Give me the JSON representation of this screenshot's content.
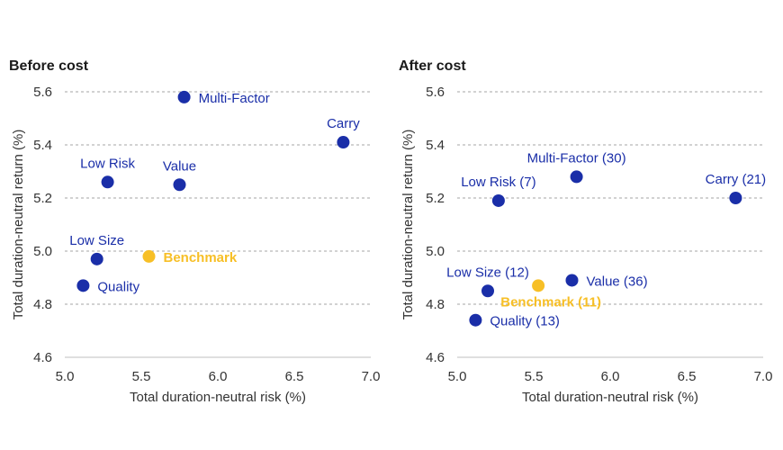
{
  "colors": {
    "series": "#1a2ea8",
    "benchmark": "#f7bf26",
    "text": "#333333"
  },
  "chart_data": [
    {
      "type": "scatter",
      "title": "Before cost",
      "xlabel": "Total duration-neutral risk (%)",
      "ylabel": "Total duration-neutral return (%)",
      "xlim": [
        5.0,
        7.0
      ],
      "ylim": [
        4.6,
        5.6
      ],
      "xticks": [
        "5.0",
        "5.5",
        "6.0",
        "6.5",
        "7.0"
      ],
      "yticks": [
        "4.6",
        "4.8",
        "5.0",
        "5.2",
        "5.4",
        "5.6"
      ],
      "grid": "horizontal dashed",
      "points": [
        {
          "label": "Multi-Factor",
          "x": 5.78,
          "y": 5.58,
          "benchmark": false,
          "anchor": "right"
        },
        {
          "label": "Carry",
          "x": 6.82,
          "y": 5.41,
          "benchmark": false,
          "anchor": "above"
        },
        {
          "label": "Low Risk",
          "x": 5.28,
          "y": 5.26,
          "benchmark": false,
          "anchor": "above"
        },
        {
          "label": "Value",
          "x": 5.75,
          "y": 5.25,
          "benchmark": false,
          "anchor": "above"
        },
        {
          "label": "Low Size",
          "x": 5.21,
          "y": 4.97,
          "benchmark": false,
          "anchor": "above"
        },
        {
          "label": "Benchmark",
          "x": 5.55,
          "y": 4.98,
          "benchmark": true,
          "anchor": "right"
        },
        {
          "label": "Quality",
          "x": 5.12,
          "y": 4.87,
          "benchmark": false,
          "anchor": "right"
        }
      ]
    },
    {
      "type": "scatter",
      "title": "After cost",
      "xlabel": "Total duration-neutral risk (%)",
      "ylabel": "Total duration-neutral return (%)",
      "xlim": [
        5.0,
        7.0
      ],
      "ylim": [
        4.6,
        5.6
      ],
      "xticks": [
        "5.0",
        "5.5",
        "6.0",
        "6.5",
        "7.0"
      ],
      "yticks": [
        "4.6",
        "4.8",
        "5.0",
        "5.2",
        "5.4",
        "5.6"
      ],
      "grid": "horizontal dashed",
      "points": [
        {
          "label": "Multi-Factor (30)",
          "x": 5.78,
          "y": 5.28,
          "benchmark": false,
          "anchor": "above"
        },
        {
          "label": "Carry (21)",
          "x": 6.82,
          "y": 5.2,
          "benchmark": false,
          "anchor": "above"
        },
        {
          "label": "Low Risk (7)",
          "x": 5.27,
          "y": 5.19,
          "benchmark": false,
          "anchor": "above"
        },
        {
          "label": "Low Size (12)",
          "x": 5.2,
          "y": 4.85,
          "benchmark": false,
          "anchor": "above"
        },
        {
          "label": "Value (36)",
          "x": 5.75,
          "y": 4.89,
          "benchmark": false,
          "anchor": "right"
        },
        {
          "label": "Benchmark (11)",
          "x": 5.53,
          "y": 4.87,
          "benchmark": true,
          "anchor": "below"
        },
        {
          "label": "Quality (13)",
          "x": 5.12,
          "y": 4.74,
          "benchmark": false,
          "anchor": "right"
        }
      ]
    }
  ]
}
